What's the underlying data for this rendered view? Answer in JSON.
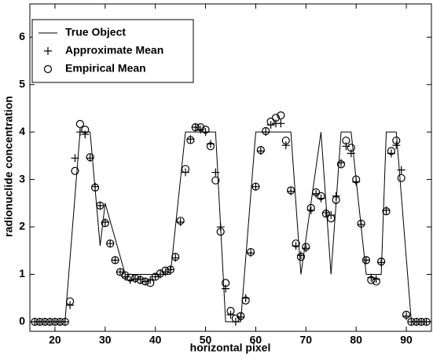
{
  "chart_data": {
    "type": "line",
    "xlabel": "horizontal pixel",
    "ylabel": "radionuclide concentration",
    "xlim": [
      15,
      95
    ],
    "xticks": [
      20,
      30,
      40,
      50,
      60,
      70,
      80,
      90
    ],
    "ylim": [
      -0.2,
      6.7
    ],
    "yticks": [
      0,
      1,
      2,
      3,
      4,
      5,
      6
    ],
    "legend": "upper left",
    "x": [
      16,
      17,
      18,
      19,
      20,
      21,
      22,
      23,
      24,
      25,
      26,
      27,
      28,
      29,
      30,
      31,
      32,
      33,
      34,
      35,
      36,
      37,
      38,
      39,
      40,
      41,
      42,
      43,
      44,
      45,
      46,
      47,
      48,
      49,
      50,
      51,
      52,
      53,
      54,
      55,
      56,
      57,
      58,
      59,
      60,
      61,
      62,
      63,
      64,
      65,
      66,
      67,
      68,
      69,
      70,
      71,
      72,
      73,
      74,
      75,
      76,
      77,
      78,
      79,
      80,
      81,
      82,
      83,
      84,
      85,
      86,
      87,
      88,
      89,
      90,
      91,
      92,
      93,
      94
    ],
    "series": [
      {
        "name": "True Object",
        "style": "line",
        "color": "#000000",
        "x": [
          15,
          22,
          25,
          27,
          29,
          30,
          34,
          43,
          46,
          52,
          54,
          57,
          60,
          67,
          69,
          73,
          75,
          77,
          79,
          82,
          85,
          86,
          88,
          91,
          95
        ],
        "values": [
          0,
          0,
          4,
          4,
          1.6,
          2.5,
          1,
          1,
          4,
          4,
          0,
          0,
          4,
          4,
          1,
          4,
          1,
          4,
          4,
          1,
          1,
          4,
          4,
          0,
          0
        ]
      },
      {
        "name": "Approximate Mean",
        "style": "plus",
        "color": "#000000",
        "values": [
          0,
          0,
          0,
          0,
          0,
          0,
          0,
          0.35,
          3.45,
          4.0,
          3.95,
          3.45,
          2.85,
          2.45,
          2.1,
          1.65,
          1.3,
          1.05,
          0.95,
          0.88,
          0.9,
          0.9,
          0.85,
          0.88,
          0.95,
          1.0,
          1.05,
          1.1,
          1.35,
          2.1,
          3.15,
          3.85,
          4.1,
          4.05,
          4.0,
          3.75,
          3.15,
          2.0,
          0.7,
          0.15,
          0.0,
          0.1,
          0.5,
          1.45,
          2.85,
          3.6,
          4.0,
          4.15,
          4.18,
          4.18,
          3.72,
          2.75,
          1.6,
          1.4,
          1.55,
          2.35,
          2.7,
          2.6,
          2.3,
          2.25,
          2.65,
          3.35,
          3.7,
          3.55,
          2.95,
          2.05,
          1.3,
          0.93,
          0.9,
          1.25,
          2.35,
          3.55,
          3.72,
          3.2,
          0.12,
          0,
          0,
          0,
          0
        ]
      },
      {
        "name": "Empirical Mean",
        "style": "circle",
        "color": "#000000",
        "values": [
          0,
          0,
          0,
          0,
          0,
          0,
          0,
          0.43,
          3.18,
          4.17,
          4.05,
          3.47,
          2.83,
          2.45,
          2.08,
          1.65,
          1.3,
          1.05,
          0.98,
          0.93,
          0.92,
          0.88,
          0.85,
          0.82,
          0.95,
          1.02,
          1.08,
          1.1,
          1.37,
          2.13,
          3.22,
          3.83,
          4.1,
          4.1,
          4.05,
          3.7,
          2.98,
          1.9,
          0.82,
          0.23,
          0.07,
          0.12,
          0.45,
          1.47,
          2.85,
          3.62,
          4.02,
          4.22,
          4.3,
          4.35,
          3.82,
          2.77,
          1.65,
          1.37,
          1.58,
          2.4,
          2.73,
          2.65,
          2.28,
          2.18,
          2.57,
          3.32,
          3.82,
          3.67,
          3.0,
          2.07,
          1.3,
          0.88,
          0.85,
          1.27,
          2.33,
          3.6,
          3.82,
          3.03,
          0.15,
          0,
          0,
          0,
          0
        ]
      }
    ]
  }
}
